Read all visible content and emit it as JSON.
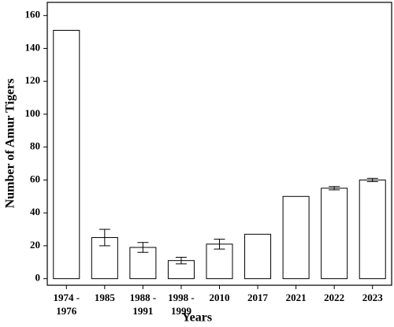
{
  "chart_data": {
    "type": "bar",
    "x_label": "Years",
    "y_label": "Number of Amur Tigers",
    "categories": [
      "1974 - 1976",
      "1985",
      "1988 - 1991",
      "1998 - 1999",
      "2010",
      "2017",
      "2021",
      "2022",
      "2023"
    ],
    "values": [
      151,
      25,
      19,
      11,
      21,
      27,
      50,
      55,
      60
    ],
    "errors": [
      null,
      5,
      3,
      2,
      3,
      null,
      null,
      1,
      1
    ],
    "color": "#ffffff",
    "ylim": [
      -4,
      168
    ],
    "yticks": [
      0,
      20,
      40,
      60,
      80,
      100,
      120,
      140,
      160
    ],
    "grid": false
  }
}
